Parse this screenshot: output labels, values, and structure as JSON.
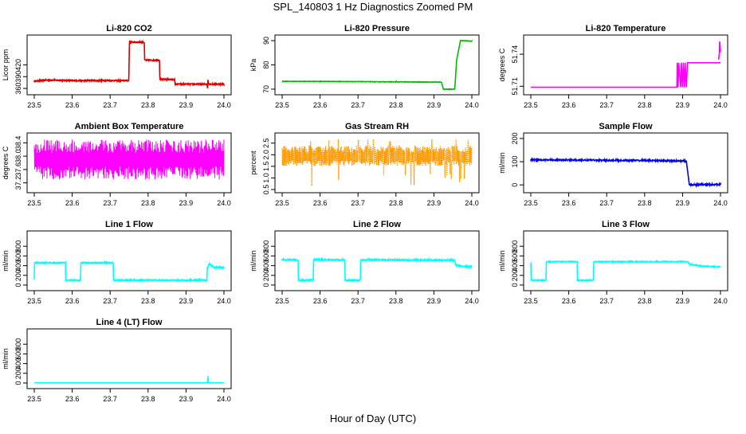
{
  "figure": {
    "title": "SPL_140803 1 Hz Diagnostics Zoomed PM",
    "xlabel": "Hour of Day (UTC)"
  },
  "chart_data": [
    {
      "type": "line",
      "title": "Li-820 CO2",
      "ylabel": "Licor ppm",
      "color": "#dd0000",
      "xlim": [
        23.5,
        24.0
      ],
      "ylim": [
        352,
        488
      ],
      "xticks": [
        23.5,
        23.6,
        23.7,
        23.8,
        23.9,
        24.0
      ],
      "xtick_labels": [
        "23.5",
        "23.6",
        "23.7",
        "23.8",
        "23.9",
        "24.0"
      ],
      "yticks": [
        360,
        390,
        420
      ],
      "ytick_labels": [
        "360",
        "390",
        "420"
      ],
      "noise": 1.5,
      "series": [
        {
          "x": [
            23.5,
            23.52,
            23.55,
            23.6,
            23.65,
            23.7,
            23.749,
            23.751,
            23.79,
            23.791,
            23.83,
            23.831,
            23.87,
            23.871,
            23.955,
            23.957,
            23.958,
            23.96,
            24.0
          ],
          "y": [
            378,
            381,
            381,
            380,
            380,
            380,
            380,
            478,
            478,
            432,
            432,
            383,
            383,
            371,
            371,
            360,
            382,
            371,
            371
          ]
        }
      ]
    },
    {
      "type": "line",
      "title": "Li-820 Pressure",
      "ylabel": "kPa",
      "color": "#00bb00",
      "xlim": [
        23.5,
        24.0
      ],
      "ylim": [
        69,
        91
      ],
      "xticks": [
        23.5,
        23.6,
        23.7,
        23.8,
        23.9,
        24.0
      ],
      "xtick_labels": [
        "23.5",
        "23.6",
        "23.7",
        "23.8",
        "23.9",
        "24.0"
      ],
      "yticks": [
        70,
        80,
        90
      ],
      "ytick_labels": [
        "70",
        "80",
        "90"
      ],
      "noise": 0.08,
      "series": [
        {
          "x": [
            23.5,
            23.6,
            23.7,
            23.8,
            23.905,
            23.92,
            23.925,
            23.955,
            23.96,
            23.97,
            24.0
          ],
          "y": [
            73.2,
            73.2,
            73.1,
            73.0,
            72.9,
            72.9,
            70.0,
            70.0,
            82.0,
            90.0,
            89.8
          ]
        }
      ]
    },
    {
      "type": "line",
      "title": "Li-820 Temperature",
      "ylabel": "degrees C",
      "color": "#ff00ff",
      "xlim": [
        23.5,
        24.0
      ],
      "ylim": [
        51.705,
        51.755
      ],
      "xticks": [
        23.5,
        23.6,
        23.7,
        23.8,
        23.9,
        24.0
      ],
      "xtick_labels": [
        "23.5",
        "23.6",
        "23.7",
        "23.8",
        "23.9",
        "24.0"
      ],
      "yticks": [
        51.71,
        51.74
      ],
      "ytick_labels": [
        "51.71",
        "51.74"
      ],
      "noise": 0,
      "series": [
        {
          "x": [
            23.5,
            23.885,
            23.886,
            23.888,
            23.89,
            23.895,
            23.897,
            23.9,
            23.902,
            23.905,
            23.907,
            23.91,
            23.913,
            23.915,
            24.0
          ],
          "y": [
            51.709,
            51.709,
            51.732,
            51.709,
            51.732,
            51.709,
            51.732,
            51.709,
            51.732,
            51.709,
            51.732,
            51.709,
            51.732,
            51.732,
            51.732
          ]
        },
        {
          "x": [
            23.995,
            23.997,
            23.998,
            24.0
          ],
          "y": [
            51.735,
            51.741,
            51.752,
            51.742
          ]
        }
      ]
    },
    {
      "type": "line",
      "title": "Ambient Box Temperature",
      "ylabel": "degrees C",
      "color": "#ff00ff",
      "xlim": [
        23.5,
        24.0
      ],
      "ylim": [
        37.0,
        38.6
      ],
      "xticks": [
        23.5,
        23.6,
        23.7,
        23.8,
        23.9,
        24.0
      ],
      "xtick_labels": [
        "23.5",
        "23.6",
        "23.7",
        "23.8",
        "23.9",
        "24.0"
      ],
      "yticks": [
        37.2,
        37.6,
        38.0,
        38.4
      ],
      "ytick_labels": [
        "37.2",
        "37.6",
        "38.0",
        "38.4"
      ],
      "band": {
        "low": [
          37.3,
          37.7
        ],
        "high": [
          38.1,
          38.5
        ],
        "density": 520
      },
      "series": [
        {
          "x": [
            23.5,
            24.0
          ],
          "y": [
            37.7,
            37.75
          ]
        }
      ]
    },
    {
      "type": "scatter",
      "title": "Gas Stream RH",
      "ylabel": "percent",
      "color": "#ff9900",
      "xlim": [
        23.5,
        24.0
      ],
      "ylim": [
        0.5,
        2.8
      ],
      "xticks": [
        23.5,
        23.6,
        23.7,
        23.8,
        23.9,
        24.0
      ],
      "xtick_labels": [
        "23.5",
        "23.6",
        "23.7",
        "23.8",
        "23.9",
        "24.0"
      ],
      "yticks": [
        0.5,
        1.0,
        1.5,
        2.0,
        2.5
      ],
      "ytick_labels": [
        "0.5",
        "1.0",
        "1.5",
        "2.0",
        "2.5"
      ],
      "band": {
        "low": [
          1.5,
          1.75
        ],
        "high": [
          2.1,
          2.4
        ],
        "density": 480
      },
      "series": [
        {
          "x": [
            23.5,
            24.0
          ],
          "y": [
            1.8,
            1.8
          ]
        }
      ]
    },
    {
      "type": "line",
      "title": "Sample Flow",
      "ylabel": "ml/min",
      "color": "#0000ee",
      "xlim": [
        23.5,
        24.0
      ],
      "ylim": [
        -20,
        210
      ],
      "xticks": [
        23.5,
        23.6,
        23.7,
        23.8,
        23.9,
        24.0
      ],
      "xtick_labels": [
        "23.5",
        "23.6",
        "23.7",
        "23.8",
        "23.9",
        "24.0"
      ],
      "yticks": [
        0,
        100,
        200
      ],
      "ytick_labels": [
        "0",
        "100",
        "200"
      ],
      "noise": 3,
      "series": [
        {
          "x": [
            23.5,
            23.6,
            23.7,
            23.8,
            23.9,
            23.91,
            23.918,
            23.93,
            24.0
          ],
          "y": [
            108,
            107,
            106,
            105,
            103,
            103,
            0,
            0,
            2
          ]
        }
      ]
    },
    {
      "type": "line",
      "title": "Line 1 Flow",
      "ylabel": "ml/min",
      "color": "#00ffff",
      "xlim": [
        23.5,
        24.0
      ],
      "ylim": [
        -50,
        1050
      ],
      "xticks": [
        23.5,
        23.6,
        23.7,
        23.8,
        23.9,
        24.0
      ],
      "xtick_labels": [
        "23.5",
        "23.6",
        "23.7",
        "23.8",
        "23.9",
        "24.0"
      ],
      "yticks": [
        0,
        200,
        400,
        600,
        800
      ],
      "ytick_labels": [
        "0",
        "200",
        "400",
        "600",
        "800"
      ],
      "noise": 12,
      "series": [
        {
          "x": [
            23.5,
            23.501,
            23.582,
            23.583,
            23.622,
            23.623,
            23.708,
            23.709,
            23.955,
            23.956,
            23.96,
            23.975,
            24.0
          ],
          "y": [
            120,
            460,
            460,
            100,
            100,
            460,
            460,
            100,
            100,
            330,
            440,
            360,
            360
          ]
        }
      ]
    },
    {
      "type": "line",
      "title": "Line 2 Flow",
      "ylabel": "ml/min",
      "color": "#00ffff",
      "xlim": [
        23.5,
        24.0
      ],
      "ylim": [
        -50,
        1050
      ],
      "xticks": [
        23.5,
        23.6,
        23.7,
        23.8,
        23.9,
        24.0
      ],
      "xtick_labels": [
        "23.5",
        "23.6",
        "23.7",
        "23.8",
        "23.9",
        "24.0"
      ],
      "yticks": [
        0,
        200,
        400,
        600,
        800
      ],
      "ytick_labels": [
        "0",
        "200",
        "400",
        "600",
        "800"
      ],
      "noise": 14,
      "series": [
        {
          "x": [
            23.5,
            23.542,
            23.543,
            23.582,
            23.583,
            23.665,
            23.666,
            23.706,
            23.707,
            23.955,
            23.957,
            23.98,
            24.0
          ],
          "y": [
            520,
            520,
            100,
            100,
            520,
            520,
            100,
            100,
            520,
            510,
            420,
            380,
            380
          ]
        }
      ]
    },
    {
      "type": "line",
      "title": "Line 3 Flow",
      "ylabel": "ml/min",
      "color": "#00ffff",
      "xlim": [
        23.5,
        24.0
      ],
      "ylim": [
        -50,
        1050
      ],
      "xticks": [
        23.5,
        23.6,
        23.7,
        23.8,
        23.9,
        24.0
      ],
      "xtick_labels": [
        "23.5",
        "23.6",
        "23.7",
        "23.8",
        "23.9",
        "24.0"
      ],
      "yticks": [
        0,
        200,
        400,
        600,
        800
      ],
      "ytick_labels": [
        "0",
        "200",
        "400",
        "600",
        "800"
      ],
      "noise": 10,
      "series": [
        {
          "x": [
            23.5,
            23.501,
            23.54,
            23.541,
            23.622,
            23.623,
            23.665,
            23.666,
            23.915,
            23.918,
            23.95,
            24.0
          ],
          "y": [
            460,
            100,
            100,
            480,
            480,
            100,
            100,
            480,
            480,
            430,
            390,
            370
          ]
        }
      ]
    },
    {
      "type": "line",
      "title": "Line 4 (LT) Flow",
      "ylabel": "ml/min",
      "color": "#00ffff",
      "xlim": [
        23.5,
        24.0
      ],
      "ylim": [
        -50,
        1050
      ],
      "xticks": [
        23.5,
        23.6,
        23.7,
        23.8,
        23.9,
        24.0
      ],
      "xtick_labels": [
        "23.5",
        "23.6",
        "23.7",
        "23.8",
        "23.9",
        "24.0"
      ],
      "yticks": [
        0,
        200,
        400,
        600,
        800
      ],
      "ytick_labels": [
        "0",
        "200",
        "400",
        "600",
        "800"
      ],
      "noise": 0,
      "series": [
        {
          "x": [
            23.5,
            23.957,
            23.958,
            23.959,
            24.0
          ],
          "y": [
            5,
            5,
            140,
            5,
            5
          ]
        }
      ]
    }
  ]
}
